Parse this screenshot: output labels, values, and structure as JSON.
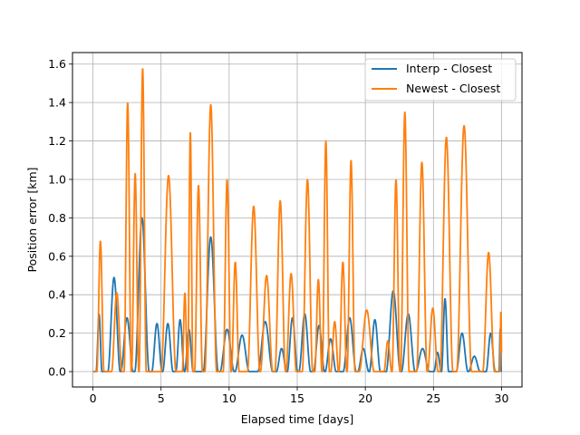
{
  "chart_data": {
    "type": "line",
    "title": "",
    "xlabel": "Elapsed time [days]",
    "ylabel": "Position error [km]",
    "xlim": [
      -1.5,
      31.5
    ],
    "ylim": [
      -0.08,
      1.66
    ],
    "xticks": [
      0,
      5,
      10,
      15,
      20,
      25,
      30
    ],
    "xtick_labels": [
      "0",
      "5",
      "10",
      "15",
      "20",
      "25",
      "30"
    ],
    "yticks": [
      0.0,
      0.2,
      0.4,
      0.6,
      0.8,
      1.0,
      1.2,
      1.4,
      1.6
    ],
    "ytick_labels": [
      "0.0",
      "0.2",
      "0.4",
      "0.6",
      "0.8",
      "1.0",
      "1.2",
      "1.4",
      "1.6"
    ],
    "grid": true,
    "legend": "top-right",
    "series": [
      {
        "name": "Interp - Closest",
        "color": "#1f77b4",
        "peaks": [
          [
            0.45,
            0.3
          ],
          [
            1.55,
            0.49
          ],
          [
            2.5,
            0.28
          ],
          [
            3.6,
            0.8
          ],
          [
            4.7,
            0.25
          ],
          [
            5.5,
            0.25
          ],
          [
            6.4,
            0.27
          ],
          [
            7.05,
            0.22
          ],
          [
            8.65,
            0.7
          ],
          [
            9.85,
            0.22
          ],
          [
            10.95,
            0.19
          ],
          [
            12.65,
            0.26
          ],
          [
            13.85,
            0.12
          ],
          [
            14.65,
            0.28
          ],
          [
            15.55,
            0.3
          ],
          [
            16.6,
            0.24
          ],
          [
            17.45,
            0.17
          ],
          [
            18.85,
            0.28
          ],
          [
            19.85,
            0.12
          ],
          [
            20.7,
            0.27
          ],
          [
            22.05,
            0.42
          ],
          [
            23.15,
            0.3
          ],
          [
            24.2,
            0.12
          ],
          [
            25.3,
            0.1
          ],
          [
            25.85,
            0.38
          ],
          [
            27.1,
            0.2
          ],
          [
            28.0,
            0.08
          ],
          [
            29.2,
            0.2
          ],
          [
            29.9,
            0.22
          ]
        ]
      },
      {
        "name": "Newest - Closest",
        "color": "#ff7f0e",
        "peaks": [
          [
            0.55,
            0.68
          ],
          [
            1.75,
            0.41
          ],
          [
            2.55,
            1.4
          ],
          [
            3.1,
            1.03
          ],
          [
            3.65,
            1.58
          ],
          [
            5.55,
            1.02
          ],
          [
            6.75,
            0.41
          ],
          [
            7.15,
            1.25
          ],
          [
            7.75,
            0.97
          ],
          [
            8.65,
            1.39
          ],
          [
            9.85,
            1.0
          ],
          [
            10.45,
            0.57
          ],
          [
            11.8,
            0.86
          ],
          [
            12.75,
            0.5
          ],
          [
            13.75,
            0.89
          ],
          [
            14.55,
            0.51
          ],
          [
            15.75,
            1.0
          ],
          [
            16.55,
            0.48
          ],
          [
            17.1,
            1.2
          ],
          [
            17.75,
            0.26
          ],
          [
            18.35,
            0.57
          ],
          [
            18.95,
            1.1
          ],
          [
            20.1,
            0.32
          ],
          [
            21.65,
            0.16
          ],
          [
            22.25,
            1.0
          ],
          [
            22.9,
            1.35
          ],
          [
            24.15,
            1.09
          ],
          [
            24.95,
            0.33
          ],
          [
            25.95,
            1.22
          ],
          [
            27.25,
            1.28
          ],
          [
            29.05,
            0.62
          ],
          [
            29.95,
            0.32
          ]
        ]
      }
    ]
  }
}
